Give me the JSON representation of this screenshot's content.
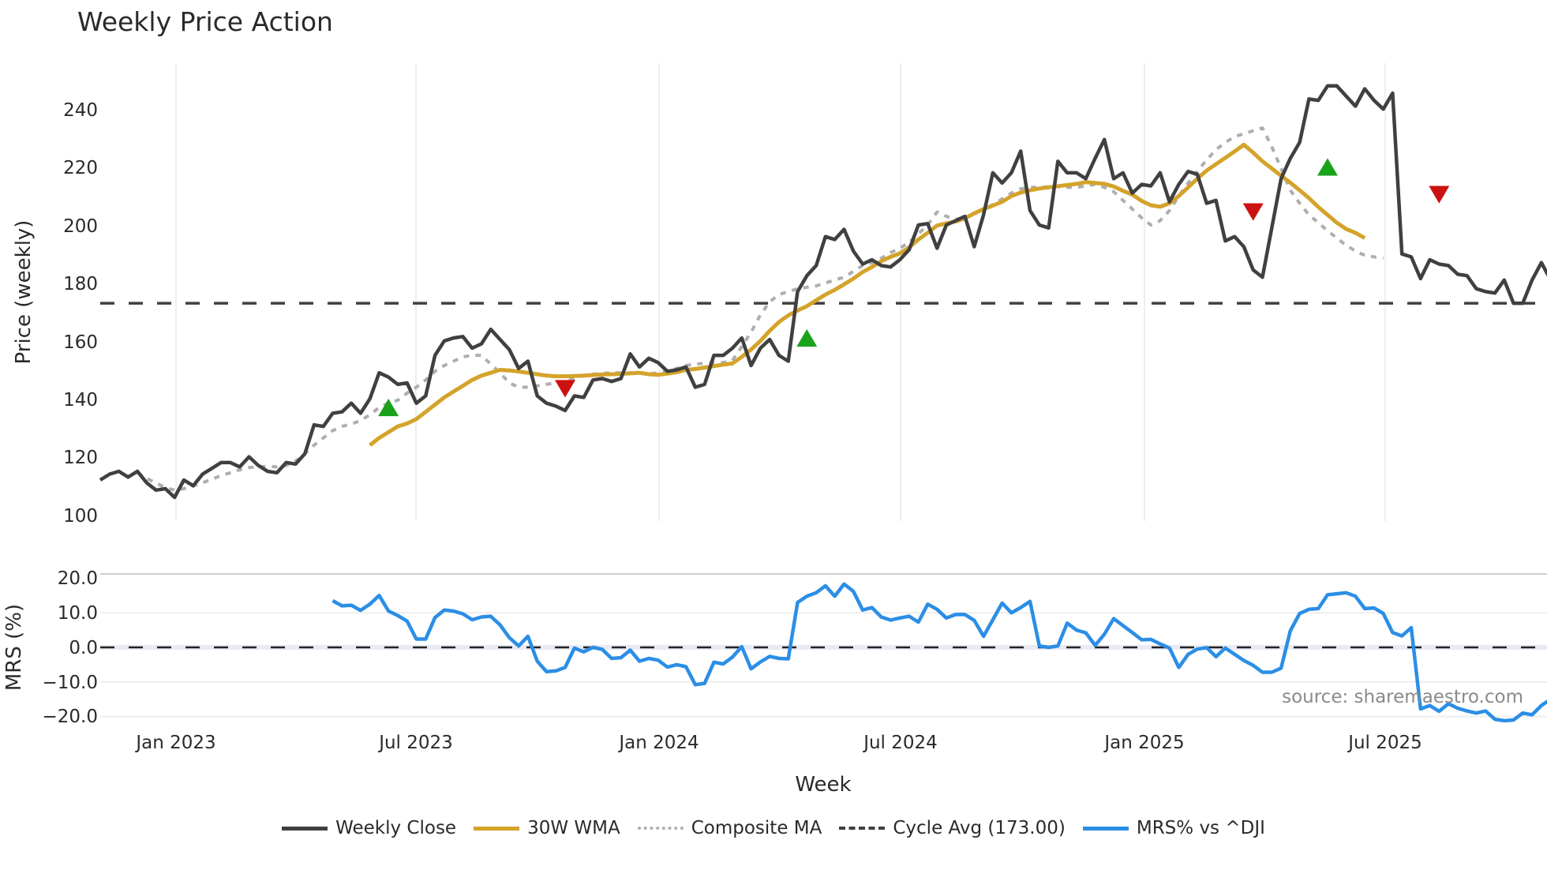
{
  "title": "Weekly Price Action",
  "chart_data": [
    {
      "type": "line",
      "panel": "price",
      "title": "Weekly Price Action",
      "xlabel": "Week",
      "ylabel": "Price (weekly)",
      "ylim": [
        100,
        255
      ],
      "yticks": [
        100,
        120,
        140,
        160,
        180,
        200,
        220,
        240
      ],
      "xticks": [
        "Jan 2023",
        "Jul 2023",
        "Jan 2024",
        "Jul 2024",
        "Jan 2025",
        "Jul 2025"
      ],
      "x_start_week_offset": -8,
      "grid": "vertical",
      "series": [
        {
          "name": "Weekly Close",
          "color": "#404040",
          "start_index": 0,
          "values": [
            112,
            114,
            115,
            113,
            115,
            111,
            108.5,
            109,
            106,
            112,
            110,
            114,
            116,
            118,
            118,
            116.5,
            120,
            117,
            115,
            114.5,
            118,
            117.5,
            121,
            131,
            130.5,
            135,
            135.5,
            138.5,
            135,
            140,
            149,
            147.5,
            145,
            145.5,
            138.5,
            141,
            155,
            160,
            161,
            161.5,
            157.5,
            159,
            164,
            160.5,
            157,
            150.5,
            153,
            141,
            138.5,
            137.5,
            136,
            141,
            140.5,
            146.5,
            147,
            146,
            147,
            155.5,
            151,
            154,
            152.5,
            149.5,
            150,
            151,
            144,
            145,
            155,
            155,
            157.5,
            161,
            151.5,
            157.5,
            160.5,
            155,
            153,
            177,
            182.5,
            186,
            196,
            195,
            198.5,
            191,
            186.5,
            188,
            186,
            185.5,
            188,
            191.5,
            200,
            200.5,
            192,
            200,
            201.5,
            203,
            192.5,
            203.5,
            218,
            214.5,
            218,
            225.5,
            205,
            200,
            199,
            222,
            218,
            218,
            216,
            223,
            229.5,
            216,
            218,
            211,
            214,
            213.5,
            218,
            208,
            214,
            218.5,
            217.5,
            207.5,
            208.5,
            194.5,
            196,
            192.5,
            184.5,
            182,
            199,
            216,
            223,
            228.5,
            243.5,
            243,
            248,
            248,
            244.5,
            241,
            247,
            243,
            240,
            245.5,
            190,
            189,
            181.5,
            188,
            186.5,
            186,
            183,
            182.5,
            178,
            177,
            176.5,
            181,
            173,
            173,
            181,
            187,
            181
          ]
        },
        {
          "name": "30W WMA",
          "color": "#d4a32a",
          "start_index": 29,
          "values": [
            124,
            126.5,
            128.5,
            130.5,
            131.5,
            133,
            135.5,
            138,
            140.5,
            142.5,
            144.5,
            146.5,
            148,
            149,
            150,
            149.8,
            149.4,
            149,
            148.5,
            148,
            147.8,
            147.8,
            147.9,
            148,
            148.2,
            148.4,
            148.5,
            148.6,
            148.8,
            149,
            148.5,
            148.3,
            148.7,
            149.2,
            150,
            150.3,
            150.8,
            151.3,
            151.8,
            152.2,
            154.5,
            157,
            160,
            163.5,
            166.5,
            168.8,
            170.5,
            172,
            174,
            176,
            177.6,
            179.5,
            181.5,
            183.8,
            185.5,
            187.5,
            189,
            190.2,
            192.3,
            195,
            197.3,
            199.8,
            200.6,
            201.2,
            202.3,
            204,
            205.5,
            206.7,
            208,
            210,
            211.2,
            212,
            212.6,
            213,
            213.4,
            213.8,
            214.2,
            214.8,
            214.5,
            214.2,
            213.3,
            211.8,
            210.5,
            208.3,
            206.8,
            206.3,
            207.5,
            210,
            213,
            216,
            218.8,
            221,
            223.2,
            225.4,
            227.7,
            225,
            222,
            219.5,
            217,
            214.6,
            212,
            209.3,
            206.2,
            203.5,
            200.8,
            198.6,
            197.3,
            195.5
          ]
        },
        {
          "name": "Composite MA",
          "color": "#aeaeae",
          "start_index": 4,
          "values": [
            114.5,
            112.5,
            111,
            109.3,
            108.5,
            109,
            110,
            111,
            112.3,
            113.5,
            114.5,
            115.5,
            116.3,
            116.6,
            116.7,
            116.5,
            117,
            118.5,
            121,
            124,
            126.5,
            129,
            130.5,
            131.3,
            132.5,
            134.5,
            137,
            138.5,
            139.5,
            142,
            144,
            146.5,
            149.5,
            151.5,
            153,
            154.5,
            155,
            155,
            152,
            149,
            145.5,
            144,
            144,
            144.5,
            145,
            145.5,
            146,
            147,
            148,
            148.5,
            148.8,
            149,
            149,
            149,
            148.8,
            148.6,
            149,
            149.5,
            150.5,
            151.5,
            152,
            152.3,
            152.4,
            152.5,
            153.3,
            158,
            163,
            169,
            173.5,
            176,
            177,
            178,
            178.5,
            179,
            180,
            181,
            182,
            184,
            186,
            187,
            188.5,
            190.5,
            192,
            194,
            197,
            200,
            204.5,
            203,
            202,
            202.5,
            204,
            205.5,
            207,
            209,
            211,
            212.5,
            213,
            213,
            213.2,
            213.3,
            213,
            213,
            213.5,
            214,
            213,
            211.5,
            208.5,
            205.5,
            202.5,
            200,
            201.5,
            205,
            210,
            214.5,
            218.5,
            222.5,
            226,
            228.5,
            230.5,
            231.5,
            232.5,
            233.5,
            227,
            219.5,
            212,
            207.5,
            203.5,
            200.8,
            198,
            195.5,
            193,
            191,
            189.5,
            189,
            188.5
          ]
        },
        {
          "name": "Cycle Avg (173.00)",
          "color": "#404040",
          "constant": 173.0
        }
      ],
      "markers": [
        {
          "type": "buy",
          "shape": "triangle-up",
          "color": "#1aa31a",
          "week_index": 31,
          "value": 136.5
        },
        {
          "type": "sell",
          "shape": "triangle-down",
          "color": "#cc1111",
          "week_index": 50,
          "value": 144
        },
        {
          "type": "buy",
          "shape": "triangle-up",
          "color": "#1aa31a",
          "week_index": 76,
          "value": 160.5
        },
        {
          "type": "sell",
          "shape": "triangle-down",
          "color": "#cc1111",
          "week_index": 124,
          "value": 205
        },
        {
          "type": "buy",
          "shape": "triangle-up",
          "color": "#1aa31a",
          "week_index": 132,
          "value": 219.5
        },
        {
          "type": "sell",
          "shape": "triangle-down",
          "color": "#cc1111",
          "week_index": 144,
          "value": 211
        }
      ]
    },
    {
      "type": "line",
      "panel": "mrs",
      "xlabel": "Week",
      "ylabel": "MRS (%)",
      "ylim": [
        -22,
        22
      ],
      "yticks": [
        -20,
        -10,
        0,
        10,
        20
      ],
      "ytick_labels": [
        "−20.0",
        "−10.0",
        "0.0",
        "10.0",
        "20.0"
      ],
      "zero_line": "dashed",
      "series": [
        {
          "name": "MRS% vs ^DJI",
          "color": "#2b8ee6",
          "start_index": 25,
          "values": [
            13.5,
            12,
            12.2,
            10.7,
            12.5,
            15,
            10.5,
            9.2,
            7.6,
            2.4,
            2.4,
            8.6,
            10.8,
            10.5,
            9.7,
            8,
            8.8,
            9,
            6.5,
            2.8,
            0.4,
            3.2,
            -4,
            -7,
            -6.8,
            -5.8,
            -0.2,
            -1.3,
            0,
            -0.6,
            -3.2,
            -3,
            -0.8,
            -4,
            -3.2,
            -3.7,
            -5.7,
            -5,
            -5.6,
            -10.8,
            -10.4,
            -4.3,
            -4.8,
            -2.8,
            0.2,
            -6.2,
            -4.2,
            -2.6,
            -3.2,
            -3.3,
            13,
            14.8,
            15.8,
            17.8,
            14.8,
            18.3,
            16.2,
            10.8,
            11.5,
            8.8,
            7.9,
            8.5,
            9,
            7.3,
            12.5,
            11,
            8.5,
            9.5,
            9.5,
            7.8,
            3.2,
            8,
            12.8,
            10,
            11.5,
            13.3,
            0.4,
            0,
            0.4,
            7,
            5,
            4.2,
            0.6,
            3.8,
            8.3,
            6.3,
            4.3,
            2.2,
            2.3,
            1,
            -0.2,
            -5.8,
            -2,
            -0.5,
            -0.1,
            -2.7,
            -0.2,
            -2,
            -3.8,
            -5.2,
            -7.2,
            -7.2,
            -6,
            4.8,
            9.8,
            11,
            11.2,
            15.2,
            15.5,
            15.8,
            14.8,
            11.2,
            11.4,
            9.8,
            4.3,
            3.3,
            5.7,
            -17.8,
            -16.8,
            -18.5,
            -16.3,
            -17.6,
            -18.4,
            -19,
            -18.4,
            -20.8,
            -21.2,
            -21,
            -19,
            -19.5,
            -16.8,
            -15,
            -18
          ]
        }
      ]
    }
  ],
  "axes": {
    "price_ylabel": "Price (weekly)",
    "mrs_ylabel": "MRS (%)",
    "xlabel": "Week",
    "price_ticks": [
      "240",
      "220",
      "200",
      "180",
      "160",
      "140",
      "120",
      "100"
    ],
    "mrs_ticks": [
      "20.0",
      "10.0",
      "0.0",
      "−10.0",
      "−20.0"
    ],
    "x_ticks": [
      "Jan 2023",
      "Jul 2023",
      "Jan 2024",
      "Jul 2024",
      "Jan 2025",
      "Jul 2025"
    ]
  },
  "source_note": "source: sharemaestro.com",
  "legend": [
    {
      "label": "Weekly Close",
      "color": "#404040",
      "style": "solid"
    },
    {
      "label": "30W WMA",
      "color": "#d4a32a",
      "style": "solid"
    },
    {
      "label": "Composite MA",
      "color": "#aeaeae",
      "style": "dotted"
    },
    {
      "label": "Cycle Avg (173.00)",
      "color": "#404040",
      "style": "dashed"
    },
    {
      "label": "MRS% vs ^DJI",
      "color": "#2b8ee6",
      "style": "solid"
    }
  ]
}
